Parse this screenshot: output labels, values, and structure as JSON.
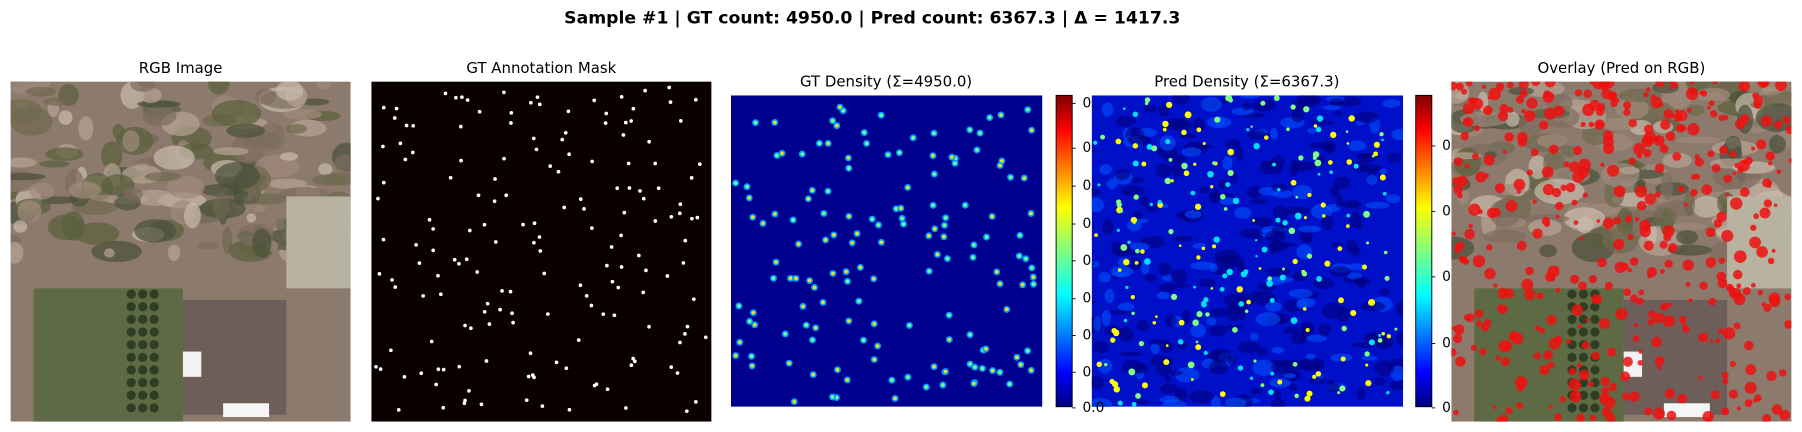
{
  "header": {
    "title": "Sample #1   |   GT count: 4950.0   |   Pred count: 6367.3   |   Δ = 1417.3"
  },
  "panels": [
    {
      "title": "RGB Image"
    },
    {
      "title": "GT Annotation Mask"
    },
    {
      "title": "GT Density  (Σ=4950.0)"
    },
    {
      "title": "Pred Density  (Σ=6367.3)"
    },
    {
      "title": "Overlay (Pred on RGB)"
    }
  ],
  "colorbars": [
    {
      "tick_labels": [
        "0.",
        "0.",
        "0.",
        "0.",
        "0.",
        "0.",
        "0.",
        "0.",
        "0.0"
      ]
    },
    {
      "tick_labels": [
        "0",
        "0",
        "0",
        "0",
        "0"
      ]
    }
  ]
}
